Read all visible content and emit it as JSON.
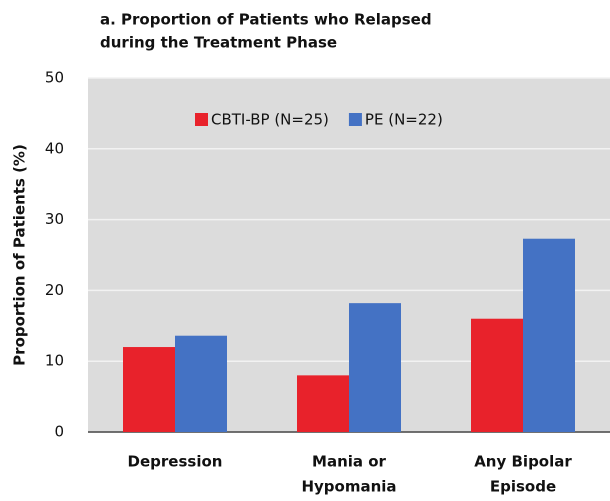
{
  "chart_data": {
    "type": "bar",
    "title": [
      "a. Proportion of Patients who Relapsed",
      "during the Treatment Phase"
    ],
    "y_label": "Proportion of Patients (%)",
    "categories": [
      [
        "Depression"
      ],
      [
        "Mania or",
        "Hypomania"
      ],
      [
        "Any Bipolar",
        "Episode"
      ]
    ],
    "series": [
      {
        "name": "CBTI-BP (N=25)",
        "color": "#e8222b",
        "values": [
          12,
          8,
          16
        ]
      },
      {
        "name": "PE (N=22)",
        "color": "#4472c4",
        "values": [
          13.6,
          18.2,
          27.3
        ]
      }
    ],
    "ylim": [
      0,
      50
    ],
    "yticks": [
      0,
      10,
      20,
      30,
      40,
      50
    ],
    "grid": true,
    "legend": "top"
  }
}
